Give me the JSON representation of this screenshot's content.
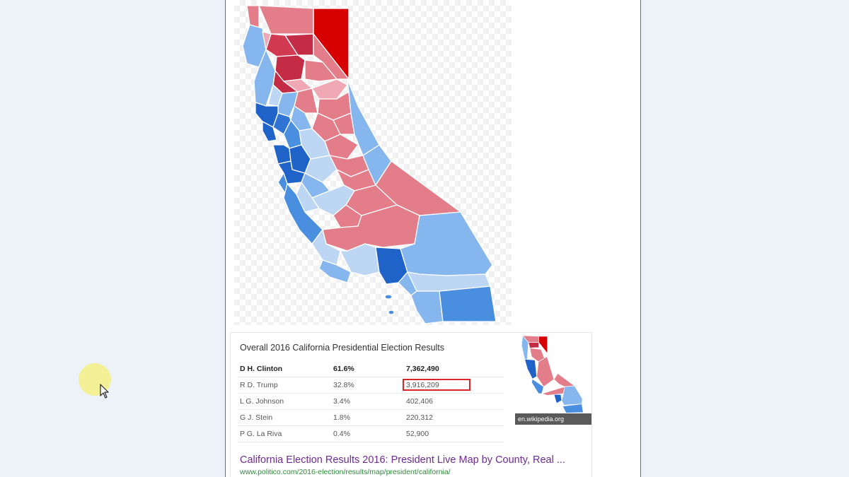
{
  "map": {
    "colors": {
      "dark_red": "#d60000",
      "red": "#d23a52",
      "light_red": "#e37d8a",
      "pale_red": "#f0a8b4",
      "pale_blue": "#bcd6f3",
      "light_blue": "#86b6ee",
      "blue": "#4a8ee0",
      "dark_blue": "#1f63c9"
    }
  },
  "results": {
    "title": "Overall 2016 California Presidential Election Results",
    "rows": [
      {
        "candidate": "D H. Clinton",
        "percent": "61.6%",
        "votes": "7,362,490"
      },
      {
        "candidate": "R D. Trump",
        "percent": "32.8%",
        "votes": "3,916,209"
      },
      {
        "candidate": "L G. Johnson",
        "percent": "3.4%",
        "votes": "402,406"
      },
      {
        "candidate": "G J. Stein",
        "percent": "1.8%",
        "votes": "220,312"
      },
      {
        "candidate": "P G. La Riva",
        "percent": "0.4%",
        "votes": "52,900"
      }
    ],
    "highlighted_row": "R D. Trump",
    "thumbnail_source": "en.wikipedia.org",
    "link_title": "California Election Results 2016: President Live Map by County, Real ...",
    "link_url": "www.politico.com/2016-election/results/map/president/california/"
  }
}
